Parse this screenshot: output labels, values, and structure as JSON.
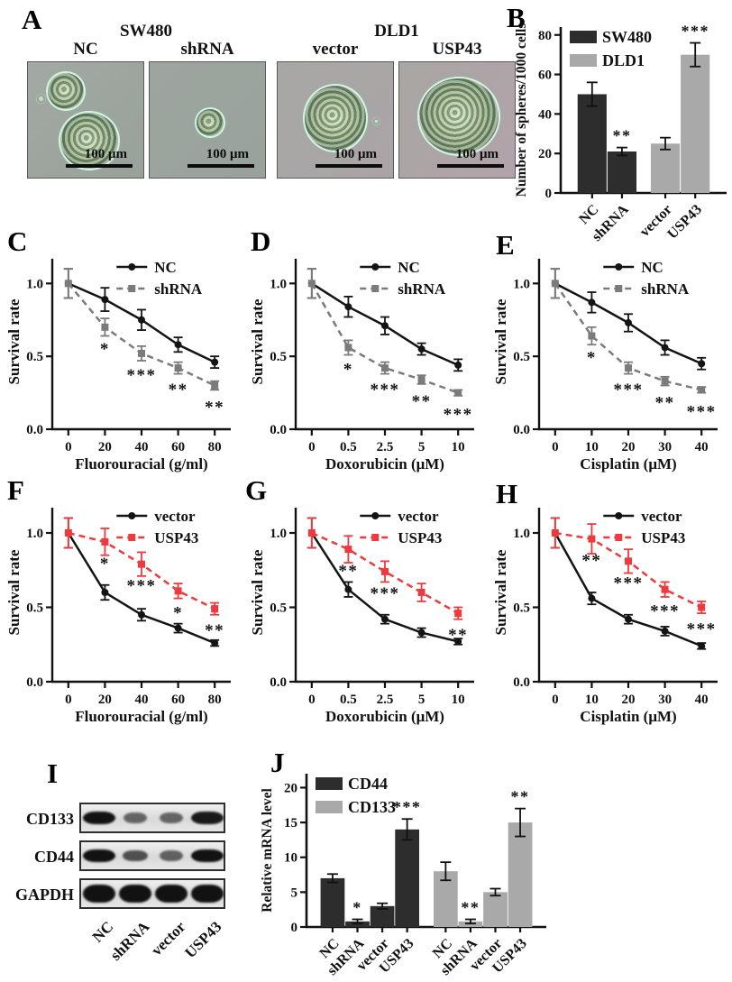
{
  "figure": {
    "panel_labels": {
      "a": "A",
      "b": "B",
      "c": "C",
      "d": "D",
      "e": "E",
      "f": "F",
      "g": "G",
      "h": "H",
      "i": "I",
      "j": "J"
    }
  },
  "panel_a": {
    "group_titles": [
      "SW480",
      "DLD1"
    ],
    "image_labels": [
      "NC",
      "shRNA",
      "vector",
      "USP43"
    ],
    "scale_bar_label": "100 μm"
  },
  "panel_i": {
    "lanes": [
      "NC",
      "shRNA",
      "vector",
      "USP43"
    ],
    "rows": [
      {
        "protein": "CD133",
        "intensities": [
          1.0,
          0.42,
          0.42,
          0.95
        ]
      },
      {
        "protein": "CD44",
        "intensities": [
          1.0,
          0.55,
          0.45,
          1.0
        ]
      },
      {
        "protein": "GAPDH",
        "intensities": [
          1.0,
          1.0,
          1.0,
          1.0
        ]
      }
    ]
  },
  "colors": {
    "dark": "#2d2d2d",
    "bar_gray": "#a9a9a9",
    "line_gray": "#7b7b7b",
    "red": "#ec3a3e",
    "black": "#141414"
  },
  "chart_data": [
    {
      "id": "chart-b",
      "panel": "B",
      "type": "bar",
      "ylabel": "Number of spheres/1000 cells",
      "categories": [
        "NC",
        "shRNA",
        "vector",
        "USP43"
      ],
      "values": [
        50,
        21,
        25,
        70
      ],
      "errors": [
        6,
        2,
        3,
        6
      ],
      "sig": [
        "",
        "**",
        "",
        "***"
      ],
      "bar_colors": [
        "#2d2d2d",
        "#2d2d2d",
        "#a9a9a9",
        "#a9a9a9"
      ],
      "positions": [
        0,
        1,
        2.45,
        3.45
      ],
      "legend": [
        {
          "label": "SW480",
          "color": "#2d2d2d"
        },
        {
          "label": "DLD1",
          "color": "#a9a9a9"
        }
      ],
      "yticks": [
        0,
        20,
        40,
        60,
        80
      ],
      "ylim": [
        0,
        84
      ],
      "grid": false,
      "legend_position": "top-left"
    },
    {
      "id": "chart-c",
      "panel": "C",
      "type": "line",
      "xlabel": "Fluorouracial (g/ml)",
      "ylabel": "Survival rate",
      "x_labels": [
        "0",
        "20",
        "40",
        "60",
        "80"
      ],
      "yticks": [
        "0.0",
        "0.5",
        "1.0"
      ],
      "ylim": [
        0,
        1.2
      ],
      "series": [
        {
          "name": "NC",
          "color": "#141414",
          "dash": false,
          "marker": "circle",
          "values": [
            1.0,
            0.89,
            0.75,
            0.58,
            0.46
          ],
          "errors": [
            0.1,
            0.08,
            0.07,
            0.05,
            0.04
          ]
        },
        {
          "name": "shRNA",
          "color": "#7b7b7b",
          "dash": true,
          "marker": "square",
          "values": [
            1.0,
            0.7,
            0.52,
            0.42,
            0.3
          ],
          "errors": [
            0.1,
            0.06,
            0.05,
            0.04,
            0.03
          ]
        }
      ],
      "sig": [
        "",
        "*",
        "***",
        "**",
        "**"
      ],
      "legend_position": "top-center"
    },
    {
      "id": "chart-d",
      "panel": "D",
      "type": "line",
      "xlabel": "Doxorubicin (μM)",
      "ylabel": "Survival rate",
      "x_labels": [
        "0",
        "0.5",
        "2.5",
        "5",
        "10"
      ],
      "yticks": [
        "0.0",
        "0.5",
        "1.0"
      ],
      "ylim": [
        0,
        1.2
      ],
      "series": [
        {
          "name": "NC",
          "color": "#141414",
          "dash": false,
          "marker": "circle",
          "values": [
            1.0,
            0.84,
            0.71,
            0.55,
            0.44
          ],
          "errors": [
            0.1,
            0.07,
            0.06,
            0.04,
            0.04
          ]
        },
        {
          "name": "shRNA",
          "color": "#7b7b7b",
          "dash": true,
          "marker": "square",
          "values": [
            1.0,
            0.56,
            0.42,
            0.34,
            0.25
          ],
          "errors": [
            0.1,
            0.05,
            0.04,
            0.03,
            0.02
          ]
        }
      ],
      "sig": [
        "",
        "*",
        "***",
        "**",
        "***"
      ],
      "legend_position": "top-center"
    },
    {
      "id": "chart-e",
      "panel": "E",
      "type": "line",
      "xlabel": "Cisplatin (μM)",
      "ylabel": "Survival rate",
      "x_labels": [
        "0",
        "10",
        "20",
        "30",
        "40"
      ],
      "yticks": [
        "0.0",
        "0.5",
        "1.0"
      ],
      "ylim": [
        0,
        1.2
      ],
      "series": [
        {
          "name": "NC",
          "color": "#141414",
          "dash": false,
          "marker": "circle",
          "values": [
            1.0,
            0.87,
            0.73,
            0.56,
            0.45
          ],
          "errors": [
            0.1,
            0.07,
            0.06,
            0.05,
            0.04
          ]
        },
        {
          "name": "shRNA",
          "color": "#7b7b7b",
          "dash": true,
          "marker": "square",
          "values": [
            1.0,
            0.64,
            0.42,
            0.33,
            0.27
          ],
          "errors": [
            0.1,
            0.06,
            0.04,
            0.03,
            0.02
          ]
        }
      ],
      "sig": [
        "",
        "*",
        "***",
        "**",
        "***"
      ],
      "legend_position": "top-center"
    },
    {
      "id": "chart-f",
      "panel": "F",
      "type": "line",
      "xlabel": "Fluorouracial (g/ml)",
      "ylabel": "Survival rate",
      "x_labels": [
        "0",
        "20",
        "40",
        "60",
        "80"
      ],
      "yticks": [
        "0.0",
        "0.5",
        "1.0"
      ],
      "ylim": [
        0,
        1.2
      ],
      "series": [
        {
          "name": "vector",
          "color": "#141414",
          "dash": false,
          "marker": "circle",
          "values": [
            1.0,
            0.6,
            0.45,
            0.36,
            0.26
          ],
          "errors": [
            0.1,
            0.05,
            0.04,
            0.03,
            0.02
          ]
        },
        {
          "name": "USP43",
          "color": "#ec3a3e",
          "dash": true,
          "marker": "square",
          "values": [
            1.0,
            0.94,
            0.79,
            0.61,
            0.49
          ],
          "errors": [
            0.1,
            0.09,
            0.08,
            0.05,
            0.04
          ]
        }
      ],
      "sig": [
        "",
        "*",
        "***",
        "*",
        "**"
      ],
      "legend_position": "top-center"
    },
    {
      "id": "chart-g",
      "panel": "G",
      "type": "line",
      "xlabel": "Doxorubicin (μM)",
      "ylabel": "Survival rate",
      "x_labels": [
        "0",
        "0.5",
        "2.5",
        "5",
        "10"
      ],
      "yticks": [
        "0.0",
        "0.5",
        "1.0"
      ],
      "ylim": [
        0,
        1.2
      ],
      "series": [
        {
          "name": "vector",
          "color": "#141414",
          "dash": false,
          "marker": "circle",
          "values": [
            1.0,
            0.62,
            0.42,
            0.33,
            0.27
          ],
          "errors": [
            0.1,
            0.05,
            0.03,
            0.03,
            0.02
          ]
        },
        {
          "name": "USP43",
          "color": "#ec3a3e",
          "dash": true,
          "marker": "square",
          "values": [
            1.0,
            0.89,
            0.74,
            0.6,
            0.46
          ],
          "errors": [
            0.1,
            0.09,
            0.07,
            0.06,
            0.04
          ]
        }
      ],
      "sig": [
        "",
        "**",
        "***",
        "",
        "**"
      ],
      "legend_position": "top-center"
    },
    {
      "id": "chart-h",
      "panel": "H",
      "type": "line",
      "xlabel": "Cisplatin (μM)",
      "ylabel": "Survival rate",
      "x_labels": [
        "0",
        "10",
        "20",
        "30",
        "40"
      ],
      "yticks": [
        "0.0",
        "0.5",
        "1.0"
      ],
      "ylim": [
        0,
        1.2
      ],
      "series": [
        {
          "name": "vector",
          "color": "#141414",
          "dash": false,
          "marker": "circle",
          "values": [
            1.0,
            0.56,
            0.42,
            0.34,
            0.24
          ],
          "errors": [
            0.1,
            0.04,
            0.03,
            0.03,
            0.02
          ]
        },
        {
          "name": "USP43",
          "color": "#ec3a3e",
          "dash": true,
          "marker": "square",
          "values": [
            1.0,
            0.96,
            0.81,
            0.62,
            0.5
          ],
          "errors": [
            0.1,
            0.1,
            0.08,
            0.05,
            0.04
          ]
        }
      ],
      "sig": [
        "",
        "**",
        "***",
        "***",
        "***"
      ],
      "legend_position": "top-center"
    },
    {
      "id": "chart-j",
      "panel": "J",
      "type": "bar",
      "ylabel": "Relative mRNA level",
      "categories": [
        "NC",
        "shRNA",
        "vector",
        "USP43",
        "NC",
        "shRNA",
        "vector",
        "USP43"
      ],
      "values": [
        7,
        0.8,
        3,
        14,
        8,
        0.8,
        5,
        15
      ],
      "errors": [
        0.6,
        0.3,
        0.4,
        1.5,
        1.3,
        0.3,
        0.5,
        2.0
      ],
      "sig": [
        "",
        "*",
        "",
        "***",
        "",
        "**",
        "",
        "**"
      ],
      "bar_colors": [
        "#2d2d2d",
        "#2d2d2d",
        "#2d2d2d",
        "#2d2d2d",
        "#a9a9a9",
        "#a9a9a9",
        "#a9a9a9",
        "#a9a9a9"
      ],
      "positions": [
        0,
        1,
        2,
        3,
        4.55,
        5.55,
        6.55,
        7.55
      ],
      "legend": [
        {
          "label": "CD44",
          "color": "#2d2d2d"
        },
        {
          "label": "CD133",
          "color": "#a9a9a9"
        }
      ],
      "yticks": [
        0,
        5,
        10,
        15,
        20
      ],
      "ylim": [
        0,
        22
      ],
      "grid": false,
      "legend_position": "top-left"
    }
  ]
}
